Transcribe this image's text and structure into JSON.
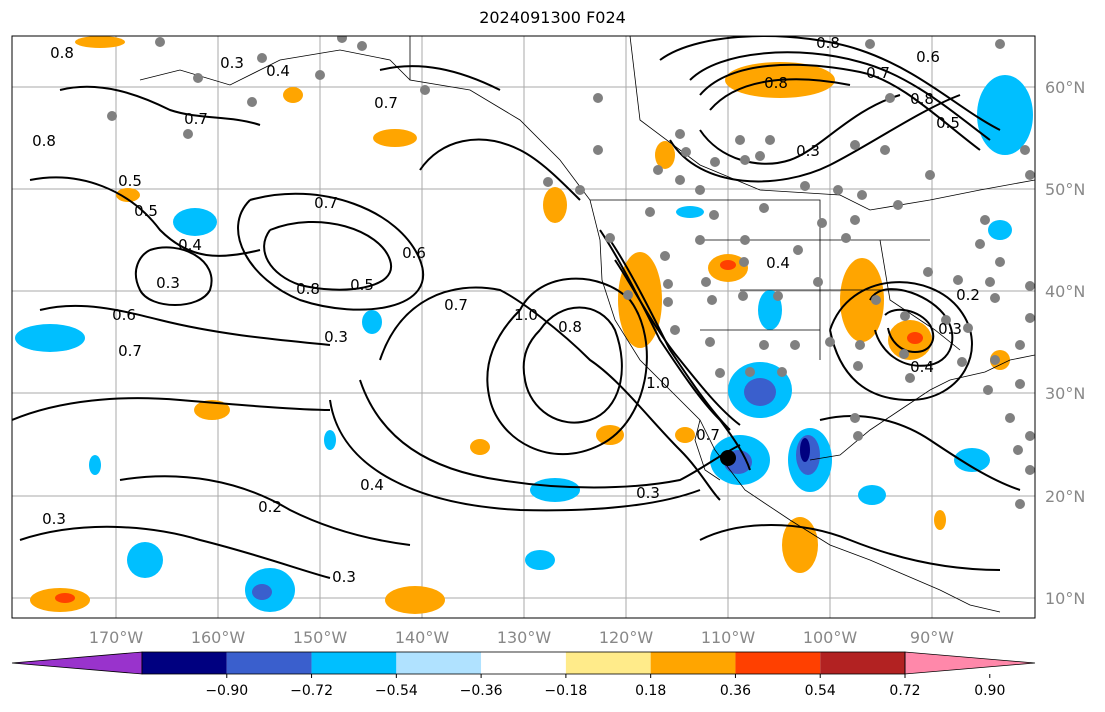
{
  "title": "2024091300 F024",
  "map": {
    "lon_ticks": [
      "170°W",
      "160°W",
      "150°W",
      "140°W",
      "130°W",
      "120°W",
      "110°W",
      "100°W",
      "90°W"
    ],
    "lat_ticks": [
      "60°N",
      "50°N",
      "40°N",
      "30°N",
      "20°N",
      "10°N"
    ],
    "contour_labels": [
      "0.8",
      "0.3",
      "0.4",
      "0.7",
      "0.7",
      "0.8",
      "0.5",
      "0.5",
      "0.4",
      "0.3",
      "0.6",
      "0.7",
      "0.7",
      "0.6",
      "0.5",
      "0.8",
      "0.3",
      "0.7",
      "1.0",
      "0.8",
      "1.0",
      "0.7",
      "0.3",
      "0.4",
      "0.2",
      "0.3",
      "0.3",
      "0.4",
      "0.8",
      "0.6",
      "0.8",
      "0.5",
      "0.3",
      "0.2",
      "0.3",
      "0.4",
      "0.8",
      "0.7"
    ]
  },
  "colorbar": {
    "ticks": [
      "−0.90",
      "−0.72",
      "−0.54",
      "−0.36",
      "−0.18",
      "0.18",
      "0.36",
      "0.54",
      "0.72",
      "0.90"
    ],
    "colors": [
      "#9933cc",
      "#000080",
      "#3a5fcd",
      "#00bfff",
      "#b0e2ff",
      "#ffffff",
      "#ffeb8a",
      "#ffa500",
      "#ff4000",
      "#b22222",
      "#ff88aa"
    ]
  }
}
